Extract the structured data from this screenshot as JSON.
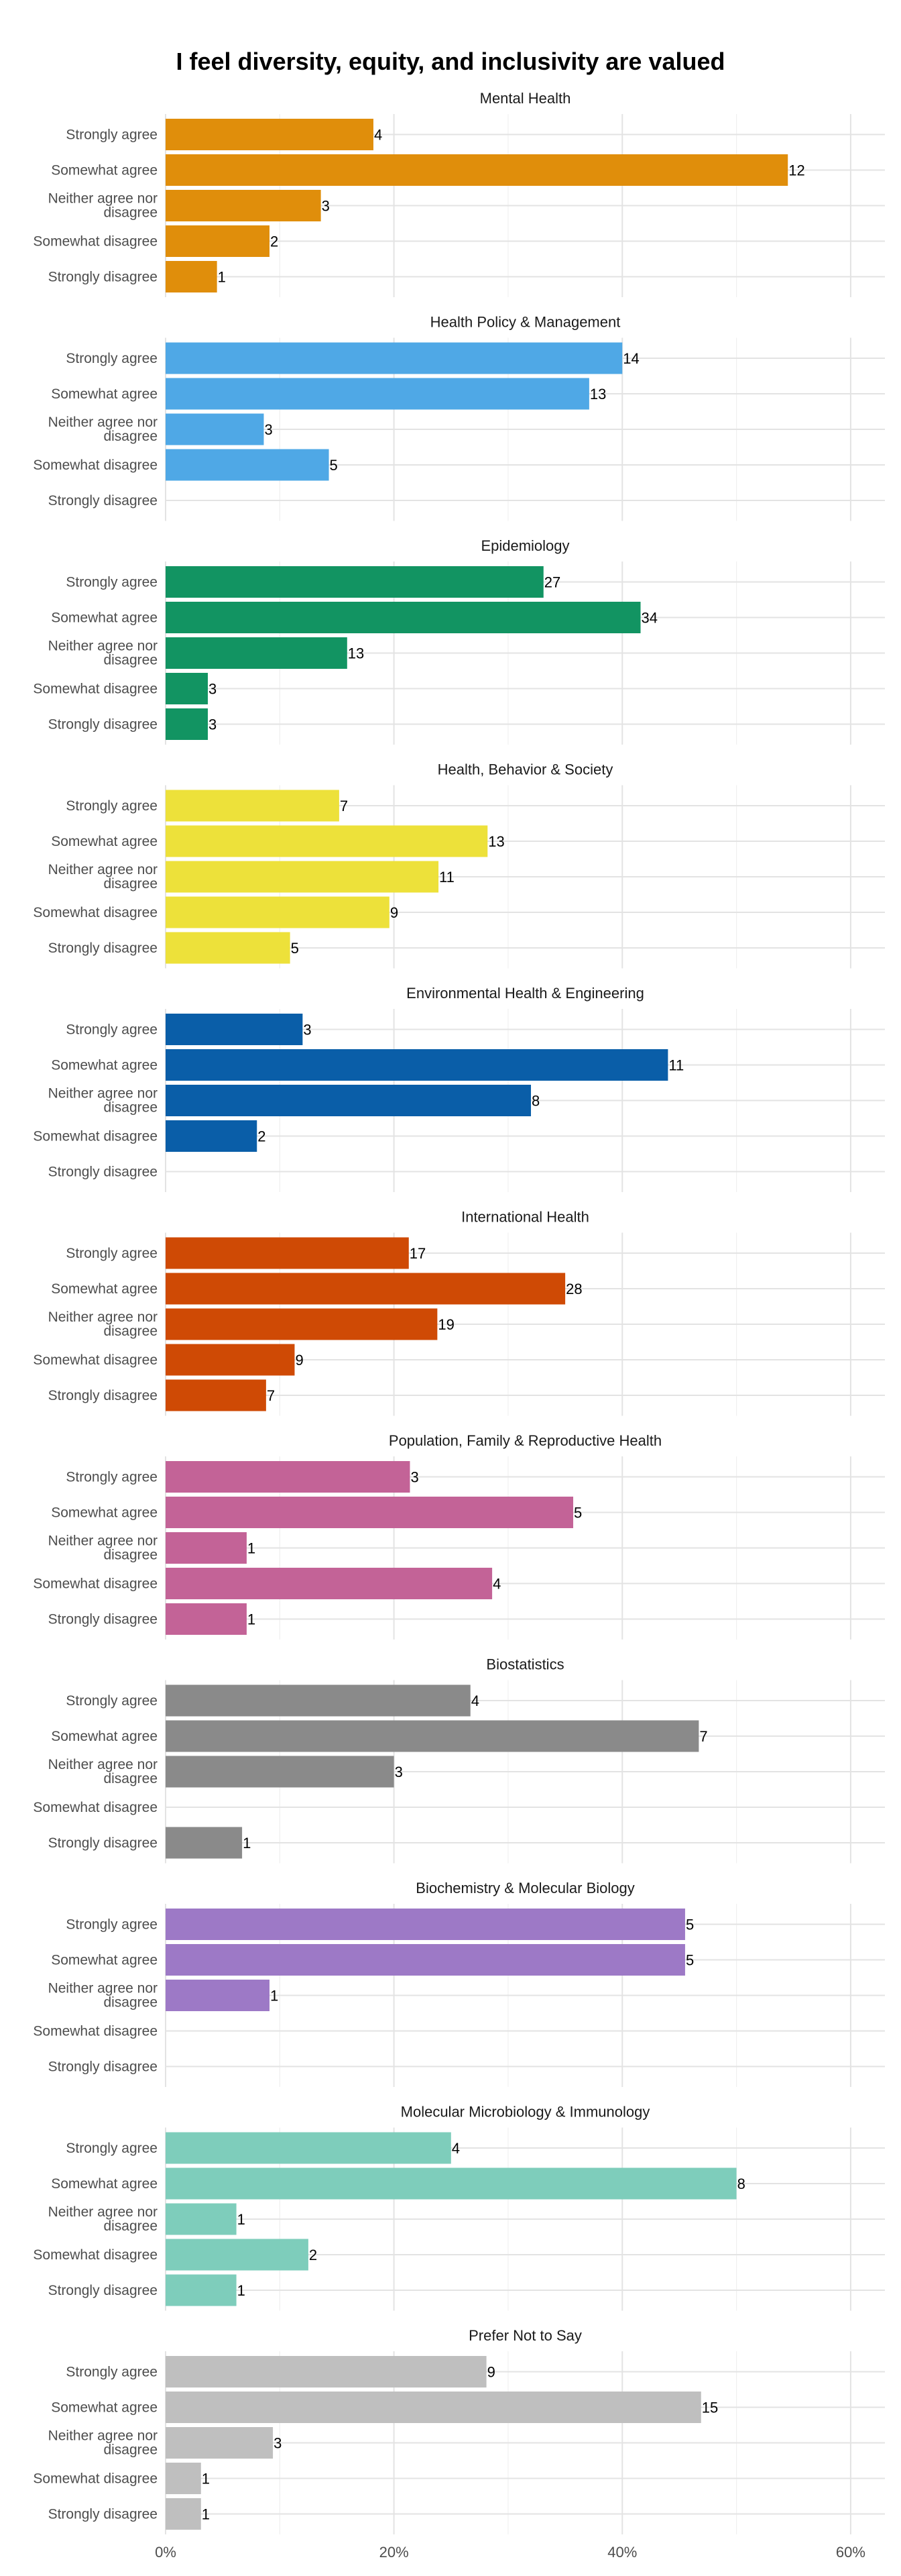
{
  "chart_data": {
    "type": "bar",
    "orientation": "horizontal",
    "title": "I feel diversity, equity, and inclusivity are valued",
    "categories": [
      "Strongly agree",
      "Somewhat agree",
      "Neither agree nor disagree",
      "Somewhat disagree",
      "Strongly disagree"
    ],
    "x_ticks": [
      "0%",
      "20%",
      "40%",
      "60%"
    ],
    "xlim": [
      0,
      0.63
    ],
    "grid": true,
    "facet_layout": "vertical stack",
    "panels": [
      {
        "name": "Mental Health",
        "color": "#E08E0B",
        "counts": [
          4,
          12,
          3,
          2,
          1
        ],
        "percent": [
          0.182,
          0.545,
          0.136,
          0.091,
          0.045
        ]
      },
      {
        "name": "Health Policy & Management",
        "color": "#4FA8E6",
        "counts": [
          14,
          13,
          3,
          5,
          null
        ],
        "percent": [
          0.4,
          0.371,
          0.086,
          0.143,
          null
        ]
      },
      {
        "name": "Epidemiology",
        "color": "#129462",
        "counts": [
          27,
          34,
          13,
          3,
          3
        ],
        "percent": [
          0.331,
          0.416,
          0.159,
          0.037,
          0.037
        ]
      },
      {
        "name": "Health, Behavior & Society",
        "color": "#EDE13A",
        "counts": [
          7,
          13,
          11,
          9,
          5
        ],
        "percent": [
          0.152,
          0.282,
          0.239,
          0.196,
          0.109
        ]
      },
      {
        "name": "Environmental Health & Engineering",
        "color": "#0A5EA8",
        "counts": [
          3,
          11,
          8,
          2,
          null
        ],
        "percent": [
          0.12,
          0.44,
          0.32,
          0.08,
          null
        ]
      },
      {
        "name": "International Health",
        "color": "#CF4A05",
        "counts": [
          17,
          28,
          19,
          9,
          7
        ],
        "percent": [
          0.213,
          0.35,
          0.238,
          0.113,
          0.088
        ]
      },
      {
        "name": "Population, Family & Reproductive Health",
        "color": "#C36397",
        "counts": [
          3,
          5,
          1,
          4,
          1
        ],
        "percent": [
          0.214,
          0.357,
          0.071,
          0.286,
          0.071
        ]
      },
      {
        "name": "Biostatistics",
        "color": "#8A8A8A",
        "counts": [
          4,
          7,
          3,
          null,
          1
        ],
        "percent": [
          0.267,
          0.467,
          0.2,
          null,
          0.067
        ]
      },
      {
        "name": "Biochemistry & Molecular Biology",
        "color": "#9D79C6",
        "counts": [
          5,
          5,
          1,
          null,
          null
        ],
        "percent": [
          0.455,
          0.455,
          0.091,
          null,
          null
        ]
      },
      {
        "name": "Molecular Microbiology & Immunology",
        "color": "#7ECDBB",
        "counts": [
          4,
          8,
          1,
          2,
          1
        ],
        "percent": [
          0.25,
          0.5,
          0.062,
          0.125,
          0.062
        ]
      },
      {
        "name": "Prefer Not to Say",
        "color": "#BFBFBF",
        "counts": [
          9,
          15,
          3,
          1,
          1
        ],
        "percent": [
          0.281,
          0.469,
          0.094,
          0.031,
          0.031
        ]
      }
    ]
  }
}
